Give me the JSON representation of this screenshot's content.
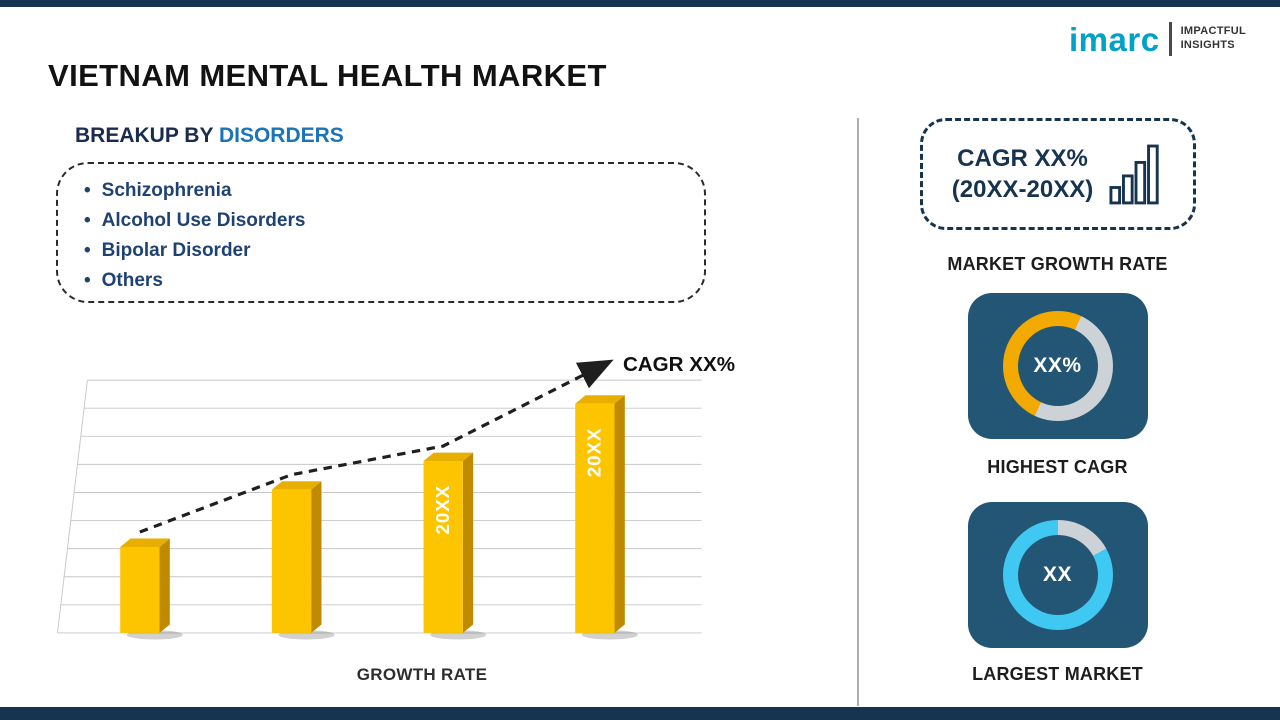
{
  "page": {
    "title": "VIETNAM MENTAL HEALTH MARKET",
    "logo": {
      "brand": "imarc",
      "tagline_line1": "IMPACTFUL",
      "tagline_line2": "INSIGHTS"
    }
  },
  "breakup": {
    "heading_prefix": "BREAKUP BY",
    "heading_highlight": "DISORDERS",
    "items": [
      "Schizophrenia",
      "Alcohol Use Disorders",
      "Bipolar Disorder",
      "Others"
    ]
  },
  "chart_data": {
    "type": "bar",
    "title": "",
    "categories": [
      "",
      "",
      "20XX",
      "20XX"
    ],
    "values": [
      36,
      60,
      72,
      96
    ],
    "bar_labels": [
      "",
      "",
      "20XX",
      "20XX"
    ],
    "xlabel": "GROWTH RATE",
    "ylabel": "",
    "ylim": [
      0,
      100
    ],
    "grid": true,
    "legend": false,
    "bar_color": "#FDC500",
    "trend_label": "CAGR XX%",
    "trend_style": "dashed-arrow"
  },
  "sidebar": {
    "cagr_box": {
      "line1": "CAGR XX%",
      "line2": "(20XX-20XX)"
    },
    "market_growth_label": "MARKET GROWTH RATE",
    "highest_cagr": {
      "value": "XX%",
      "label": "HIGHEST CAGR",
      "accent": "#F2A900",
      "share": 50
    },
    "largest_market": {
      "value": "XX",
      "label": "LARGEST MARKET",
      "accent": "#3FC9F2",
      "share": 83
    }
  },
  "colors": {
    "navy": "#16334F",
    "heading_blue": "#1B74B8",
    "list_navy": "#1E4273",
    "bar_gold": "#FDC500",
    "card_bg": "#235674",
    "donut_gray": "#CDD2D7",
    "logo_teal": "#00A2C7"
  }
}
